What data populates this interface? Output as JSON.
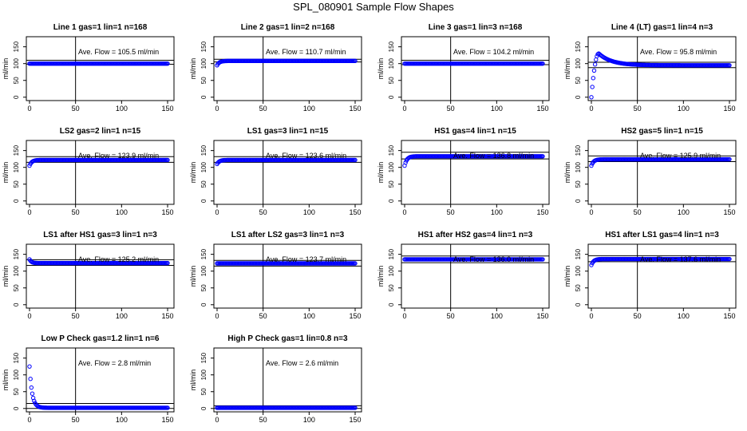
{
  "page_title": "SPL_080901  Sample Flow Shapes",
  "axis": {
    "ylabel": "ml/min",
    "xticks": [
      "0",
      "50",
      "100",
      "150"
    ],
    "yticks": [
      "0",
      "50",
      "100",
      "150"
    ]
  },
  "colors": {
    "points": "#0000ff",
    "axes": "#000000",
    "lines": "#000000"
  },
  "chart_data": [
    {
      "type": "scatter",
      "title": "Line 1 gas=1 lin=1 n=168",
      "annotation": "Ave. Flow =  105.5  ml/min",
      "xlim": [
        0,
        150
      ],
      "ylim": [
        -10,
        180
      ],
      "vline": 50,
      "hlines": [
        98,
        110
      ],
      "shape": "flat",
      "level": 100
    },
    {
      "type": "scatter",
      "title": "Line 2 gas=1 lin=2 n=168",
      "annotation": "Ave. Flow =  110.7  ml/min",
      "xlim": [
        0,
        150
      ],
      "ylim": [
        -10,
        180
      ],
      "vline": 50,
      "hlines": [
        105,
        113
      ],
      "shape": "rise",
      "start": 95,
      "level": 108
    },
    {
      "type": "scatter",
      "title": "Line 3 gas=1 lin=3 n=168",
      "annotation": "Ave. Flow =  104.2  ml/min",
      "xlim": [
        0,
        150
      ],
      "ylim": [
        -10,
        180
      ],
      "vline": 50,
      "hlines": [
        97,
        110
      ],
      "shape": "flat",
      "level": 100
    },
    {
      "type": "scatter",
      "title": "Line 4 (LT) gas=1 lin=4 n=3",
      "annotation": "Ave. Flow =  95.8  ml/min",
      "xlim": [
        0,
        150
      ],
      "ylim": [
        -10,
        180
      ],
      "vline": 50,
      "hlines": [
        88,
        104
      ],
      "shape": "overshoot",
      "start": 0,
      "peak": 130,
      "level": 95
    },
    {
      "type": "scatter",
      "title": "LS2 gas=2 lin=1 n=15",
      "annotation": "Ave. Flow =  123.9  ml/min",
      "xlim": [
        0,
        150
      ],
      "ylim": [
        -10,
        180
      ],
      "vline": 50,
      "hlines": [
        115,
        132
      ],
      "shape": "rise",
      "start": 105,
      "level": 122
    },
    {
      "type": "scatter",
      "title": "LS1 gas=3 lin=1 n=15",
      "annotation": "Ave. Flow =  123.6  ml/min",
      "xlim": [
        0,
        150
      ],
      "ylim": [
        -10,
        180
      ],
      "vline": 50,
      "hlines": [
        115,
        132
      ],
      "shape": "rise",
      "start": 110,
      "level": 122
    },
    {
      "type": "scatter",
      "title": "HS1 gas=4 lin=1 n=15",
      "annotation": "Ave. Flow =  136.8  ml/min",
      "xlim": [
        0,
        150
      ],
      "ylim": [
        -10,
        180
      ],
      "vline": 50,
      "hlines": [
        125,
        145
      ],
      "shape": "rise",
      "start": 105,
      "level": 133
    },
    {
      "type": "scatter",
      "title": "HS2 gas=5 lin=1 n=15",
      "annotation": "Ave. Flow =  125.9  ml/min",
      "xlim": [
        0,
        150
      ],
      "ylim": [
        -10,
        180
      ],
      "vline": 50,
      "hlines": [
        117,
        134
      ],
      "shape": "rise",
      "start": 105,
      "level": 124
    },
    {
      "type": "scatter",
      "title": "LS1 after HS1 gas=3 lin=1 n=3",
      "annotation": "Ave. Flow =  125.2  ml/min",
      "xlim": [
        0,
        150
      ],
      "ylim": [
        -10,
        180
      ],
      "vline": 50,
      "hlines": [
        117,
        134
      ],
      "shape": "fall",
      "start": 135,
      "level": 124
    },
    {
      "type": "scatter",
      "title": "LS1 after LS2 gas=3 lin=1 n=3",
      "annotation": "Ave. Flow =  123.7  ml/min",
      "xlim": [
        0,
        150
      ],
      "ylim": [
        -10,
        180
      ],
      "vline": 50,
      "hlines": [
        115,
        132
      ],
      "shape": "flat",
      "level": 123
    },
    {
      "type": "scatter",
      "title": "HS1 after HS2 gas=4 lin=1 n=3",
      "annotation": "Ave. Flow =  136.0  ml/min",
      "xlim": [
        0,
        150
      ],
      "ylim": [
        -10,
        180
      ],
      "vline": 50,
      "hlines": [
        125,
        145
      ],
      "shape": "flat",
      "level": 135
    },
    {
      "type": "scatter",
      "title": "HS1 after LS1 gas=4 lin=1 n=3",
      "annotation": "Ave. Flow =  137.6  ml/min",
      "xlim": [
        0,
        150
      ],
      "ylim": [
        -10,
        180
      ],
      "vline": 50,
      "hlines": [
        128,
        146
      ],
      "shape": "rise",
      "start": 118,
      "level": 136
    },
    {
      "type": "scatter",
      "title": "Low P Check gas=1.2 lin=1 n=6",
      "annotation": "Ave. Flow =  2.8  ml/min",
      "xlim": [
        0,
        150
      ],
      "ylim": [
        -10,
        180
      ],
      "vline": 50,
      "hlines": [
        0,
        15
      ],
      "shape": "decay",
      "start": 125,
      "level": 2
    },
    {
      "type": "scatter",
      "title": "High P Check gas=1 lin=0.8 n=3",
      "annotation": "Ave. Flow =  2.6  ml/min",
      "xlim": [
        0,
        150
      ],
      "ylim": [
        -10,
        180
      ],
      "vline": 50,
      "hlines": [
        0,
        8
      ],
      "shape": "flat",
      "level": 2
    }
  ]
}
